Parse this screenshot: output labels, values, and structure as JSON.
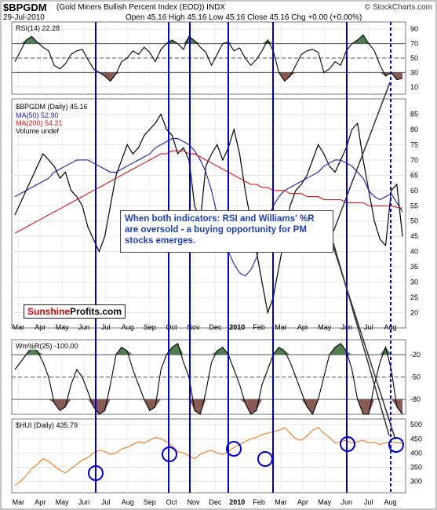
{
  "header": {
    "ticker": "$BPGDM",
    "full_name": "(Gold Miners Bullish Percent Index (EOD)) INDX",
    "date": "29-Jul-2010",
    "ohlc": "Open 45.16  High 45.16  Low 45.16  Close 45.16  Chg +0.00 (+0.00%)",
    "source": "© StockCharts.com"
  },
  "annotation": "When both indicators: RSI and Williams' %R are oversold - a buying opportunity for PM stocks emerges.",
  "logo": {
    "part1": "Sunshine",
    "part2": "Profits.com"
  },
  "colors": {
    "price": "#000000",
    "ma50": "#1a1ab0",
    "ma200": "#dd1111",
    "overbought_fill": "#4f7f4f",
    "oversold_fill": "#8a5a54",
    "vertical_lines": "#0000cc",
    "hui_line": "#f07a1a",
    "circles": "#0000cc"
  },
  "chart_data": [
    {
      "type": "line",
      "title": "RSI(14) 22.28",
      "ylim": [
        0,
        100
      ],
      "y_ticks": [
        10,
        30,
        50,
        70,
        90
      ],
      "reference_lines": [
        30,
        50,
        70
      ],
      "series": [
        {
          "name": "RSI(14)",
          "values": [
            45,
            60,
            75,
            80,
            72,
            65,
            60,
            40,
            35,
            42,
            55,
            60,
            62,
            48,
            35,
            30,
            25,
            18,
            28,
            45,
            50,
            60,
            55,
            65,
            58,
            45,
            62,
            70,
            75,
            70,
            62,
            80,
            74,
            65,
            58,
            40,
            55,
            70,
            72,
            60,
            64,
            50,
            40,
            48,
            60,
            75,
            60,
            30,
            18,
            25,
            40,
            55,
            60,
            62,
            58,
            30,
            35,
            45,
            40,
            60,
            70,
            75,
            82,
            70,
            60,
            40,
            25,
            30,
            20,
            22
          ]
        }
      ]
    },
    {
      "type": "line",
      "title": "$BPGDM (Daily) 45.16",
      "ylim": [
        15,
        90
      ],
      "y_ticks": [
        20,
        25,
        30,
        35,
        40,
        45,
        50,
        55,
        60,
        65,
        70,
        75,
        80,
        85
      ],
      "series": [
        {
          "name": "$BPGDM (Daily) 45.16",
          "values": [
            52,
            56,
            60,
            64,
            68,
            72,
            70,
            68,
            64,
            66,
            60,
            58,
            55,
            48,
            44,
            40,
            45,
            55,
            65,
            70,
            75,
            72,
            74,
            78,
            80,
            82,
            85,
            80,
            78,
            72,
            74,
            70,
            55,
            50,
            68,
            72,
            75,
            70,
            74,
            80,
            72,
            60,
            50,
            40,
            30,
            20,
            25,
            35,
            45,
            55,
            60,
            62,
            65,
            70,
            75,
            72,
            68,
            66,
            70,
            74,
            80,
            82,
            70,
            60,
            50,
            44,
            42,
            60,
            62,
            45
          ]
        },
        {
          "name": "MA(50) 52.90",
          "values": [
            58,
            59,
            60,
            61,
            62,
            63,
            64,
            66,
            67,
            68,
            69,
            70,
            70,
            70,
            69,
            68,
            67,
            66,
            66,
            67,
            68,
            69,
            70,
            71,
            72,
            74,
            75,
            76,
            77,
            77,
            76,
            75,
            73,
            70,
            66,
            60,
            52,
            45,
            40,
            36,
            33,
            32,
            34,
            38,
            44,
            50,
            55,
            58,
            60,
            61,
            62,
            63,
            64,
            65,
            66,
            68,
            69,
            70,
            70,
            69,
            68,
            66,
            64,
            60,
            58,
            57,
            58,
            59,
            56,
            52.9
          ]
        },
        {
          "name": "MA(200) 54.21",
          "values": [
            46,
            47,
            48,
            49,
            50,
            51,
            52,
            53,
            54,
            55,
            56,
            57,
            58,
            59,
            60,
            61,
            62,
            63,
            64,
            65,
            66,
            67,
            68,
            69,
            70,
            71,
            72,
            72,
            73,
            73,
            73,
            72,
            72,
            71,
            70,
            69,
            68,
            67,
            66,
            65,
            64,
            63,
            62,
            62,
            61,
            61,
            60,
            60,
            60,
            59,
            59,
            59,
            58,
            58,
            58,
            57,
            57,
            57,
            57,
            56,
            56,
            56,
            56,
            55,
            55,
            55,
            55,
            55,
            54.5,
            54.21
          ]
        }
      ],
      "legend": [
        "$BPGDM (Daily) 45.16",
        "MA(50) 52.90",
        "MA(200) 54.21",
        "Volume undef"
      ]
    },
    {
      "type": "line",
      "title": "Wm%R(25) -100.00",
      "ylim": [
        -100,
        0
      ],
      "y_ticks": [
        -20,
        -50,
        -80
      ],
      "reference_lines": [
        -20,
        -50,
        -80
      ],
      "series": [
        {
          "name": "Wm%R(25)",
          "values": [
            -40,
            -30,
            -20,
            -10,
            -15,
            -30,
            -50,
            -85,
            -95,
            -90,
            -60,
            -40,
            -50,
            -70,
            -90,
            -100,
            -95,
            -60,
            -20,
            -10,
            -15,
            -40,
            -60,
            -80,
            -95,
            -90,
            -40,
            -20,
            -10,
            -5,
            -30,
            -50,
            -95,
            -100,
            -70,
            -30,
            -15,
            -10,
            -20,
            -40,
            -60,
            -85,
            -100,
            -95,
            -60,
            -40,
            -20,
            -10,
            -15,
            -30,
            -50,
            -70,
            -90,
            -100,
            -80,
            -50,
            -20,
            -10,
            -5,
            -15,
            -40,
            -80,
            -100,
            -100,
            -60,
            -30,
            -10,
            -40,
            -90,
            -100
          ]
        }
      ]
    },
    {
      "type": "line",
      "title": "$HUI (Daily) 435.79",
      "ylim": [
        260,
        520
      ],
      "y_ticks": [
        300,
        350,
        400,
        450,
        500
      ],
      "series": [
        {
          "name": "$HUI (Daily) 435.79",
          "values": [
            285,
            300,
            320,
            345,
            360,
            380,
            370,
            355,
            340,
            330,
            345,
            360,
            375,
            385,
            400,
            410,
            405,
            395,
            400,
            415,
            420,
            430,
            440,
            435,
            445,
            455,
            450,
            440,
            425,
            405,
            400,
            390,
            380,
            395,
            405,
            410,
            400,
            395,
            405,
            420,
            430,
            440,
            450,
            455,
            465,
            470,
            475,
            480,
            490,
            470,
            450,
            445,
            460,
            480,
            490,
            470,
            455,
            435,
            440,
            445,
            435,
            440,
            445,
            436,
            438,
            430,
            436,
            440,
            436,
            435.79
          ]
        }
      ]
    }
  ],
  "x_axis": {
    "labels": [
      "Mar",
      "Apr",
      "May",
      "Jun",
      "Jul",
      "Aug",
      "Sep",
      "Oct",
      "Nov",
      "Dec",
      "2010",
      "Feb",
      "Mar",
      "Apr",
      "May",
      "Jun",
      "Jul",
      "Aug"
    ],
    "signal_lines_count": 9
  }
}
